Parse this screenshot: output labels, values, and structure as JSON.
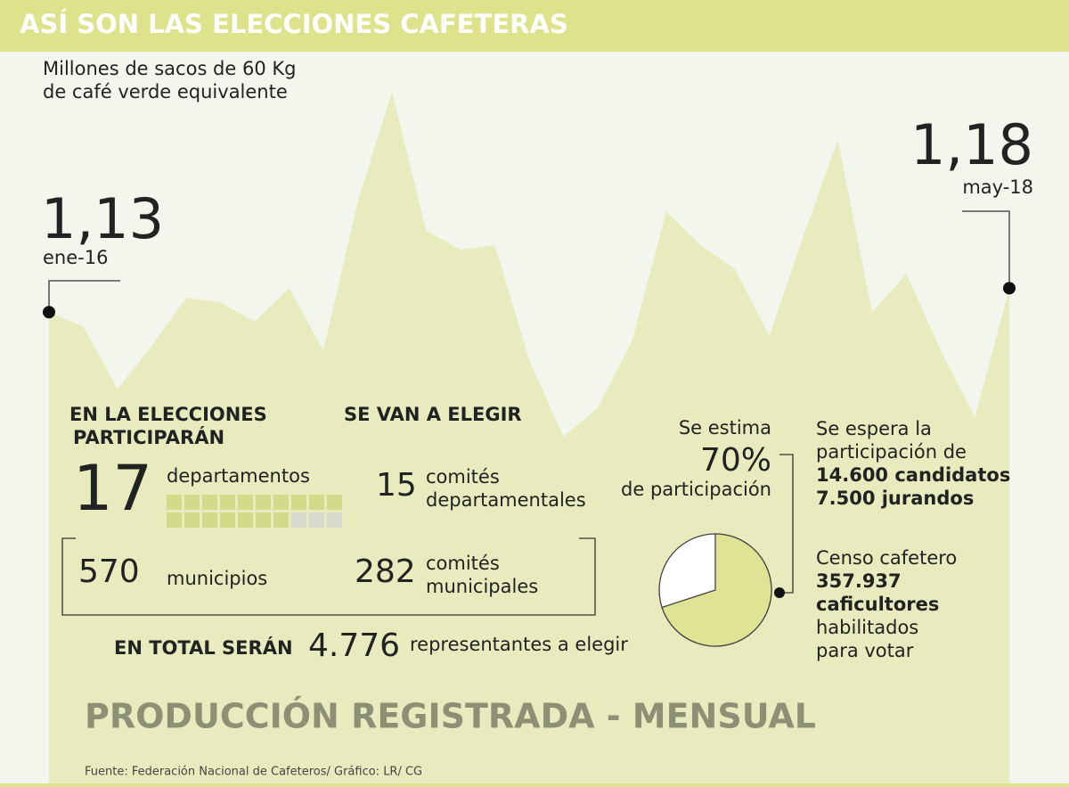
{
  "header": {
    "title": "ASÍ SON LAS ELECCIONES CAFETERAS"
  },
  "chart_data": {
    "type": "area",
    "subtitle": [
      "Millones de sacos de 60 Kg",
      "de café verde equivalente"
    ],
    "categories": [
      "ene-16",
      null,
      null,
      null,
      null,
      null,
      null,
      null,
      null,
      null,
      null,
      null,
      null,
      null,
      null,
      null,
      null,
      null,
      null,
      null,
      null,
      null,
      null,
      null,
      null,
      null,
      null,
      null,
      "may-18"
    ],
    "values": [
      1.13,
      1.1,
      0.97,
      1.06,
      1.16,
      1.15,
      1.11,
      1.18,
      1.05,
      1.36,
      1.59,
      1.3,
      1.26,
      1.27,
      1.03,
      0.87,
      0.93,
      1.07,
      1.34,
      1.27,
      1.22,
      1.08,
      1.29,
      1.49,
      1.13,
      1.21,
      1.05,
      0.91,
      1.18
    ],
    "value_labels": [
      "1,13",
      null,
      null,
      null,
      null,
      null,
      null,
      null,
      null,
      null,
      null,
      null,
      null,
      null,
      null,
      null,
      null,
      null,
      null,
      null,
      null,
      null,
      null,
      null,
      null,
      null,
      null,
      null,
      "1,18"
    ],
    "color": "#e8ebbd",
    "footer_title": "PRODUCCIÓN REGISTRADA - MENSUAL",
    "source": "Fuente: Federación Nacional de Cafeteros/ Gráfico: LR/ CG"
  },
  "elections": {
    "left_heading": [
      "EN LA ELECCIONES",
      "PARTICIPARÁN"
    ],
    "right_heading": "SE VAN A ELEGIR",
    "departments": {
      "value": 17,
      "label": "departamentos"
    },
    "municipalities": {
      "value": 570,
      "label": "municipios"
    },
    "dept_committees": {
      "value": 15,
      "label": [
        "comités",
        "departamentales"
      ]
    },
    "muni_committees": {
      "value": 282,
      "label": [
        "comités",
        "municipales"
      ]
    },
    "total": {
      "heading": "EN TOTAL SERÁN",
      "value": 4776,
      "value_label": "4.776",
      "label": "representantes a elegir"
    },
    "participation": {
      "type": "pie",
      "intro": "Se estima",
      "value": 70,
      "value_label": "70%",
      "label": "de participación",
      "color": "#dfe394"
    },
    "expected": {
      "lines": [
        "Se espera la",
        "participación de"
      ],
      "bold": [
        "14.600 candidatos",
        "7.500 jurandos"
      ]
    },
    "census": {
      "lines": [
        "Censo cafetero"
      ],
      "bold": [
        "357.937",
        "caficultores"
      ],
      "rest": [
        "habilitados",
        "para votar"
      ]
    }
  }
}
